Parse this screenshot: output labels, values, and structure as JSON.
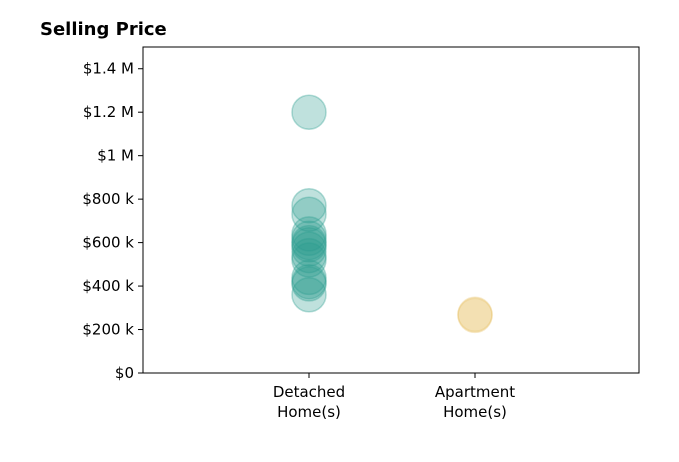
{
  "chart_data": {
    "type": "scatter",
    "title": "Selling Price",
    "xlabel": "",
    "ylabel": "",
    "ylim": [
      0,
      1500000
    ],
    "grid": false,
    "y_ticks": [
      {
        "value": 0,
        "label": "$0"
      },
      {
        "value": 200000,
        "label": "$200 k"
      },
      {
        "value": 400000,
        "label": "$400 k"
      },
      {
        "value": 600000,
        "label": "$600 k"
      },
      {
        "value": 800000,
        "label": "$800 k"
      },
      {
        "value": 1000000,
        "label": "$1 M"
      },
      {
        "value": 1200000,
        "label": "$1.2 M"
      },
      {
        "value": 1400000,
        "label": "$1.4 M"
      }
    ],
    "categories": [
      {
        "label_lines": [
          "Detached",
          "Home(s)"
        ],
        "color": "#2a9d8f"
      },
      {
        "label_lines": [
          "Apartment",
          "Home(s)"
        ],
        "color": "#e9c46a"
      }
    ],
    "series": [
      {
        "category_index": 0,
        "values": [
          1200000,
          770000,
          730000,
          640000,
          620000,
          600000,
          590000,
          570000,
          540000,
          520000,
          440000,
          420000,
          410000,
          360000
        ]
      },
      {
        "category_index": 1,
        "values": [
          270000,
          265000
        ]
      }
    ]
  }
}
